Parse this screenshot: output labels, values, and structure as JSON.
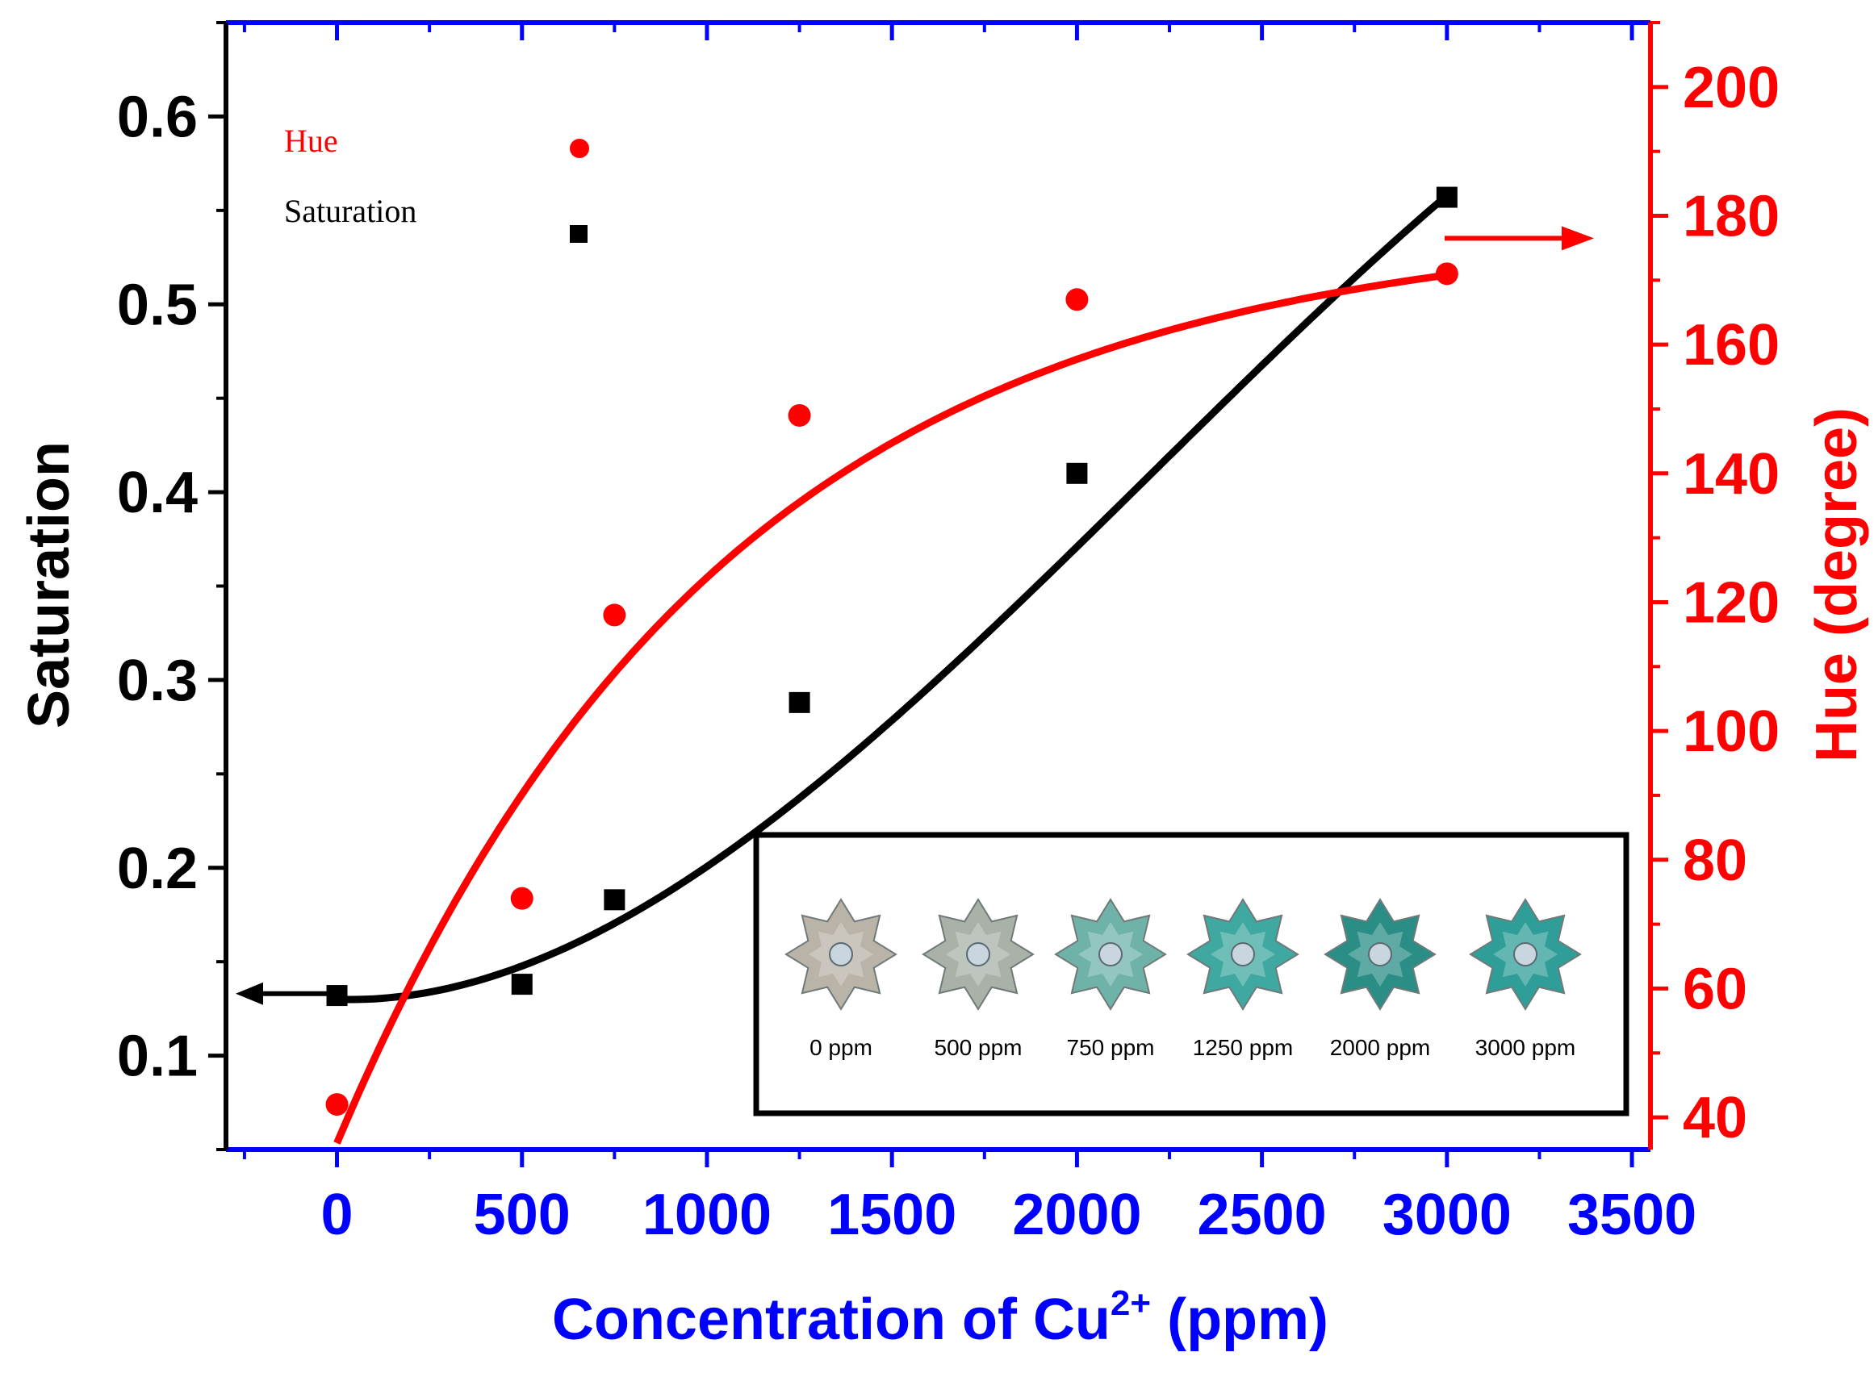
{
  "chart_data": {
    "type": "scatter",
    "title": "",
    "xlabel": "Concentration of Cu",
    "xlabel_superscript": "2+",
    "xlabel_suffix": " (ppm)",
    "ylabel_left": "Saturation",
    "ylabel_right": "Hue (degree)",
    "xlim": [
      -300,
      3550
    ],
    "ylim_left": [
      0.05,
      0.65
    ],
    "ylim_right": [
      35,
      210
    ],
    "x_ticks": [
      0,
      500,
      1000,
      1500,
      2000,
      2500,
      3000,
      3500
    ],
    "x_tick_labels": [
      "0",
      "500",
      "1000",
      "1500",
      "2000",
      "2500",
      "3000",
      "3500"
    ],
    "y_left_ticks": [
      0.1,
      0.2,
      0.3,
      0.4,
      0.5,
      0.6
    ],
    "y_left_tick_labels": [
      "0.1",
      "0.2",
      "0.3",
      "0.4",
      "0.5",
      "0.6"
    ],
    "y_right_ticks": [
      40,
      60,
      80,
      100,
      120,
      140,
      160,
      180,
      200
    ],
    "y_right_tick_labels": [
      "40",
      "60",
      "80",
      "100",
      "120",
      "140",
      "160",
      "180",
      "200"
    ],
    "legend": [
      {
        "label": "Hue",
        "color": "#ff0000",
        "marker": "circle"
      },
      {
        "label": "Saturation",
        "color": "#000000",
        "marker": "square"
      }
    ],
    "series": [
      {
        "name": "Saturation",
        "axis": "left",
        "color": "#000000",
        "marker": "square",
        "x": [
          0,
          500,
          750,
          1250,
          2000,
          3000
        ],
        "y": [
          0.132,
          0.138,
          0.183,
          0.288,
          0.41,
          0.557
        ],
        "fit": {
          "x_start": 0,
          "x_end": 3000,
          "type": "cubic"
        }
      },
      {
        "name": "Hue",
        "axis": "right",
        "color": "#ff0000",
        "marker": "circle",
        "x": [
          0,
          500,
          750,
          1250,
          2000,
          3000
        ],
        "y": [
          42,
          74,
          118,
          149,
          167,
          171
        ],
        "fit": {
          "x_start": 0,
          "x_end": 3000,
          "type": "exponential"
        }
      }
    ],
    "inset": {
      "description": "photos of sample flowers",
      "labels": [
        "0 ppm",
        "500 ppm",
        "750 ppm",
        "1250 ppm",
        "2000 ppm",
        "3000 ppm"
      ],
      "colors": [
        "#b9b3a8",
        "#a9b1a8",
        "#6fb3a8",
        "#3fa8a0",
        "#2a8e86",
        "#2f9e98"
      ]
    }
  },
  "colors": {
    "left_axis": "#000000",
    "right_axis": "#ff0000",
    "x_axis": "#0000ff"
  }
}
